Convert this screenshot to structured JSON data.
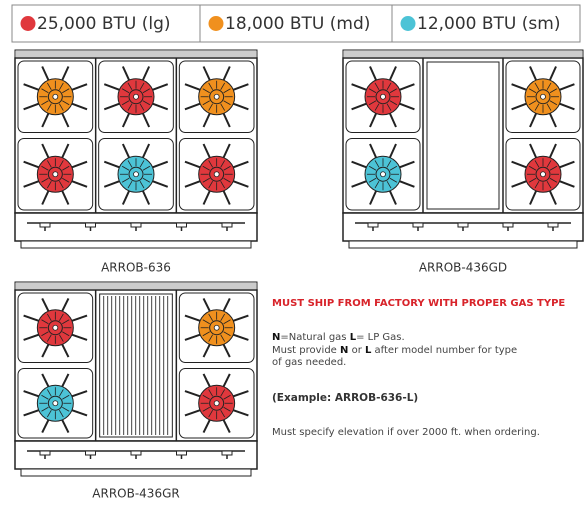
{
  "legend": [
    {
      "label": "25,000 BTU (lg)",
      "color": "#e0383d"
    },
    {
      "label": "18,000 BTU (md)",
      "color": "#f0901e"
    },
    {
      "label": "12,000 BTU (sm)",
      "color": "#4cc3d6"
    }
  ],
  "ranges": [
    {
      "model": "ARROB-636",
      "sections": [
        {
          "type": "burners",
          "burners": [
            1,
            0
          ]
        },
        {
          "type": "burners",
          "burners": [
            0,
            2
          ]
        },
        {
          "type": "burners",
          "burners": [
            1,
            0
          ]
        }
      ]
    },
    {
      "model": "ARROB-436GD",
      "sections": [
        {
          "type": "burners",
          "burners": [
            0,
            2
          ]
        },
        {
          "type": "griddle"
        },
        {
          "type": "burners",
          "burners": [
            1,
            0
          ]
        }
      ]
    },
    {
      "model": "ARROB-436GR",
      "sections": [
        {
          "type": "burners",
          "burners": [
            0,
            2
          ]
        },
        {
          "type": "grill"
        },
        {
          "type": "burners",
          "burners": [
            1,
            0
          ]
        }
      ]
    }
  ],
  "notes": {
    "heading": "MUST SHIP FROM FACTORY WITH PROPER GAS TYPE",
    "gas_line": [
      "N",
      "=Natural gas ",
      "L",
      "= LP",
      " Gas."
    ],
    "provide_line": [
      "Must provide ",
      "N",
      " or ",
      "L",
      " after model number for type"
    ],
    "provide_line_2": "of gas needed.",
    "example": "(Example: ARROB-636-L)",
    "elevation": "Must specify elevation if over 2000 ft. when ordering."
  }
}
